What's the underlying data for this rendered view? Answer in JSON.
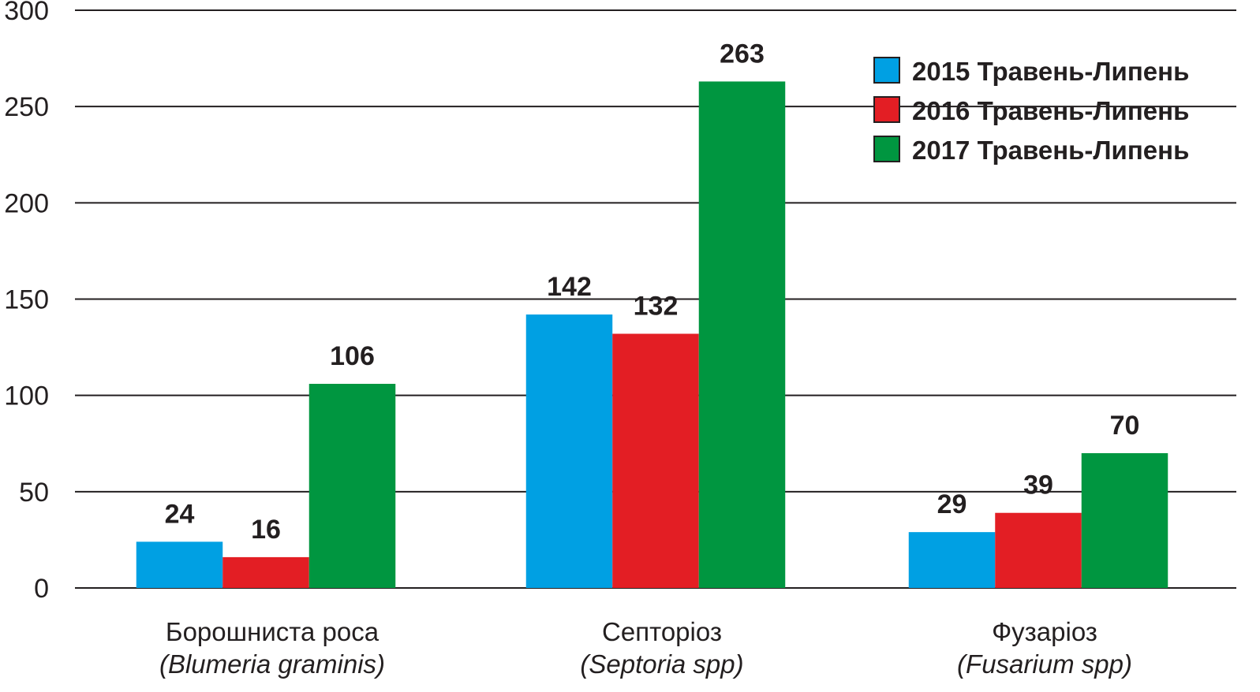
{
  "chart_data": {
    "type": "bar",
    "categories": [
      {
        "name": "Борошниста роса",
        "latin": "(Blumeria graminis)"
      },
      {
        "name": "Септоріоз",
        "latin": "(Septoria spp)"
      },
      {
        "name": "Фузаріоз",
        "latin": "(Fusarium spp)"
      }
    ],
    "series": [
      {
        "name": "2015 Травень-Липень",
        "color": "#00a0e3",
        "values": [
          24,
          142,
          29
        ],
        "labels": [
          "24",
          "142",
          "29"
        ]
      },
      {
        "name": "2016 Травень-Липень",
        "color": "#e31e24",
        "values": [
          16,
          132,
          39
        ],
        "labels": [
          "16",
          "132",
          "39"
        ]
      },
      {
        "name": "2017 Травень-Липень",
        "color": "#009640",
        "values": [
          106,
          263,
          70
        ],
        "labels": [
          "106",
          "263",
          "70"
        ]
      }
    ],
    "ylim": [
      0,
      300
    ],
    "yticks": [
      "0",
      "50",
      "100",
      "150",
      "200",
      "250",
      "300"
    ],
    "grid": true,
    "legend": "top-right",
    "title": "",
    "xlabel": "",
    "ylabel": ""
  }
}
